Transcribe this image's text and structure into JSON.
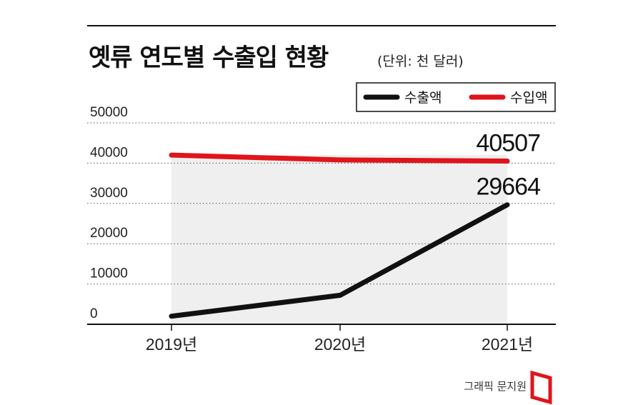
{
  "chart_data": {
    "type": "line",
    "title": "옛류 연도별 수출입 현황",
    "unit_note": "(단위: 천 달러)",
    "categories": [
      "2019년",
      "2020년",
      "2021년"
    ],
    "series": [
      {
        "name": "수출액",
        "color": "#111111",
        "values": [
          2000,
          7200,
          29664
        ]
      },
      {
        "name": "수입액",
        "color": "#e0141b",
        "values": [
          42000,
          40800,
          40507
        ]
      }
    ],
    "data_labels": [
      {
        "series": "수입액",
        "category": "2021년",
        "value": "40507"
      },
      {
        "series": "수출액",
        "category": "2021년",
        "value": "29664"
      }
    ],
    "ylim": [
      0,
      50000
    ],
    "yticks": [
      "0",
      "10000",
      "20000",
      "30000",
      "40000",
      "50000"
    ],
    "legend_position": "top-right",
    "grid": "dotted horizontal"
  },
  "credit": {
    "text": "그래픽 문지원",
    "logo_color": "#e0141b"
  }
}
